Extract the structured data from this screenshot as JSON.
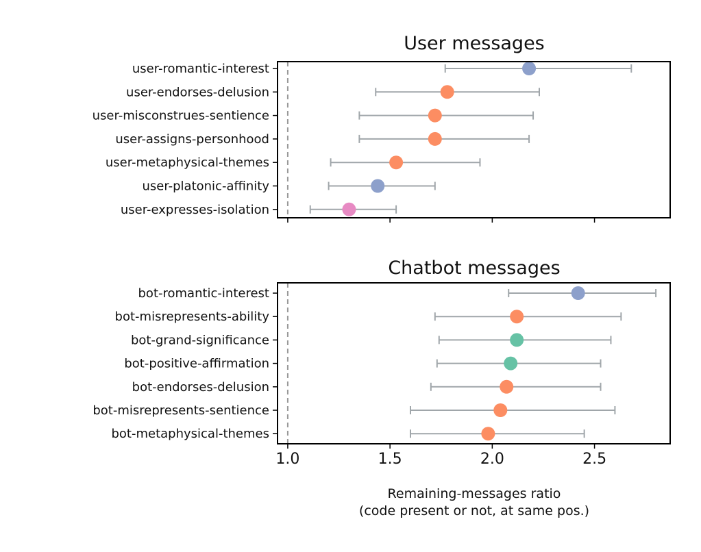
{
  "chart_data": [
    {
      "type": "scatter",
      "title": "User messages",
      "xlim": [
        0.95,
        2.87
      ],
      "reference_line": 1.0,
      "grid": false,
      "categories": [
        "user-romantic-interest",
        "user-endorses-delusion",
        "user-misconstrues-sentience",
        "user-assigns-personhood",
        "user-metaphysical-themes",
        "user-platonic-affinity",
        "user-expresses-isolation"
      ],
      "values": [
        2.18,
        1.78,
        1.72,
        1.72,
        1.53,
        1.44,
        1.3
      ],
      "ci_low": [
        1.77,
        1.43,
        1.35,
        1.35,
        1.21,
        1.2,
        1.11
      ],
      "ci_high": [
        2.68,
        2.23,
        2.2,
        2.18,
        1.94,
        1.72,
        1.53
      ],
      "colors": [
        "#8da0cb",
        "#fc8d62",
        "#fc8d62",
        "#fc8d62",
        "#fc8d62",
        "#8da0cb",
        "#e78ac3"
      ]
    },
    {
      "type": "scatter",
      "title": "Chatbot messages",
      "xlim": [
        0.95,
        2.87
      ],
      "reference_line": 1.0,
      "grid": false,
      "categories": [
        "bot-romantic-interest",
        "bot-misrepresents-ability",
        "bot-grand-significance",
        "bot-positive-affirmation",
        "bot-endorses-delusion",
        "bot-misrepresents-sentience",
        "bot-metaphysical-themes"
      ],
      "values": [
        2.42,
        2.12,
        2.12,
        2.09,
        2.07,
        2.04,
        1.98
      ],
      "ci_low": [
        2.08,
        1.72,
        1.74,
        1.73,
        1.7,
        1.6,
        1.6
      ],
      "ci_high": [
        2.8,
        2.63,
        2.58,
        2.53,
        2.53,
        2.6,
        2.45
      ],
      "colors": [
        "#8da0cb",
        "#fc8d62",
        "#66c2a5",
        "#66c2a5",
        "#fc8d62",
        "#fc8d62",
        "#fc8d62"
      ],
      "xticks": [
        "1.0",
        "1.5",
        "2.0",
        "2.5"
      ],
      "xlabel": [
        "Remaining-messages ratio",
        "(code present or not, at same pos.)"
      ]
    }
  ],
  "errorbar_color": "#a0a6aa"
}
